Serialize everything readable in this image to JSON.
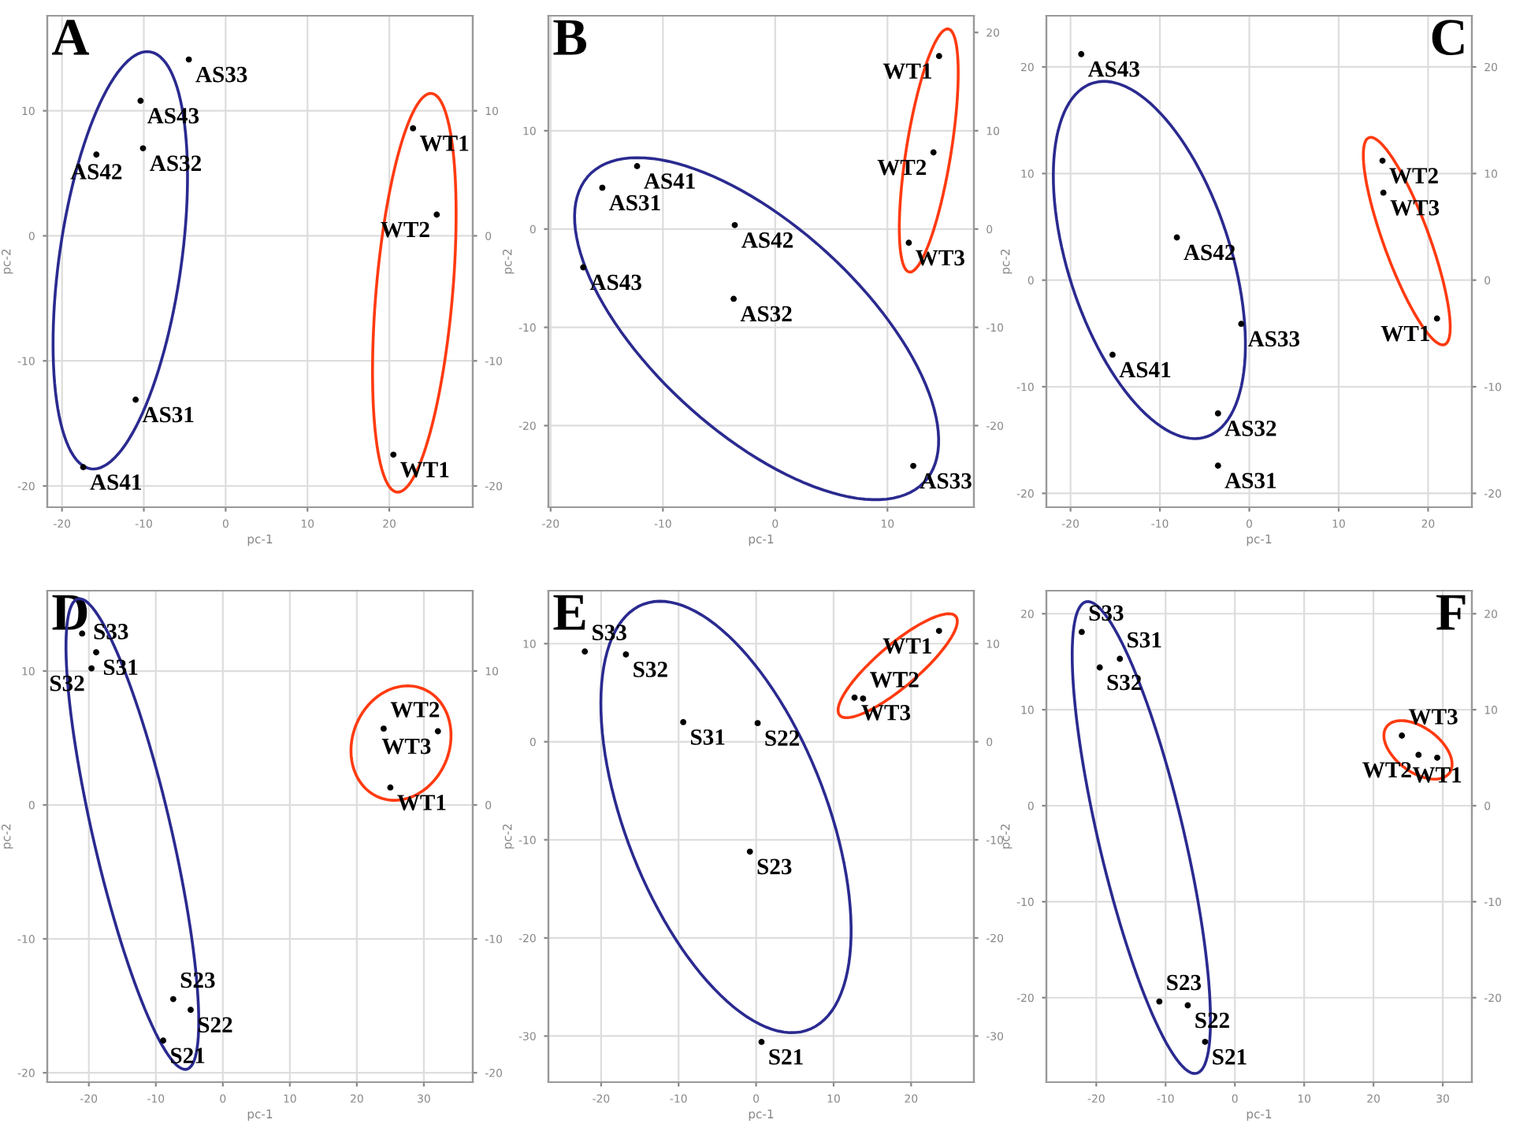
{
  "chart_data": [
    {
      "type": "scatter",
      "title": "A",
      "xlabel": "pc-1",
      "ylabel": "pc-2",
      "xlim": [
        -21.8,
        30.2
      ],
      "ylim": [
        -21.7,
        17.6
      ],
      "xticks": [
        -20,
        -10,
        0,
        10,
        20
      ],
      "yticks": [
        -20,
        -10,
        0,
        10
      ],
      "y2lim": [
        -21.7,
        17.6
      ],
      "y2ticks": [
        -20,
        -10,
        0,
        10
      ],
      "grid": true,
      "marker": "circle",
      "series": [
        {
          "color": "#000000",
          "x": [
            22.9,
            25.8,
            20.5
          ],
          "values": [
            8.6,
            1.7,
            -17.5
          ]
        },
        {
          "color": "#000000",
          "x": [
            -4.5,
            -10.4,
            -10.1,
            -15.8,
            -11.0,
            -17.4
          ],
          "values": [
            14.1,
            10.8,
            7.0,
            6.5,
            -13.1,
            -18.5
          ]
        }
      ],
      "annotations": [
        {
          "text": "WT1",
          "x": 22.9,
          "y": 8.6
        },
        {
          "text": "WT2",
          "x": 25.8,
          "y": 1.7
        },
        {
          "text": "WT1",
          "x": 20.5,
          "y": -17.5
        },
        {
          "text": "AS33",
          "x": -4.5,
          "y": 14.1
        },
        {
          "text": "AS43",
          "x": -10.4,
          "y": 10.8
        },
        {
          "text": "AS32",
          "x": -10.1,
          "y": 7.0
        },
        {
          "text": "AS42",
          "x": -15.8,
          "y": 6.5
        },
        {
          "text": "AS31",
          "x": -11.0,
          "y": -13.1
        },
        {
          "text": "AS41",
          "x": -17.4,
          "y": -18.5
        }
      ]
    },
    {
      "type": "scatter",
      "title": "B",
      "xlabel": "pc-1",
      "ylabel": "pc-2",
      "xlim": [
        -20.2,
        17.7
      ],
      "ylim": [
        -28.3,
        21.7
      ],
      "xticks": [
        -20,
        -10,
        0,
        10
      ],
      "yticks": [
        -20,
        -10,
        0,
        10
      ],
      "y2lim": [
        -28.3,
        21.7
      ],
      "y2ticks": [
        -20,
        -10,
        0,
        10,
        20
      ],
      "grid": true,
      "marker": "circle",
      "series": [
        {
          "color": "#000000",
          "x": [
            14.6,
            14.1,
            11.9
          ],
          "values": [
            17.6,
            7.8,
            -1.4
          ]
        },
        {
          "color": "#000000",
          "x": [
            -12.3,
            -15.4,
            -3.6,
            -17.1,
            -3.7,
            12.3
          ],
          "values": [
            6.4,
            4.2,
            0.4,
            -3.9,
            -7.1,
            -24.1
          ]
        }
      ],
      "annotations": [
        {
          "text": "WT1",
          "x": 14.6,
          "y": 17.6
        },
        {
          "text": "WT2",
          "x": 14.1,
          "y": 7.8
        },
        {
          "text": "WT3",
          "x": 11.9,
          "y": -1.4
        },
        {
          "text": "AS41",
          "x": -12.3,
          "y": 6.4
        },
        {
          "text": "AS31",
          "x": -15.4,
          "y": 4.2
        },
        {
          "text": "AS42",
          "x": -3.6,
          "y": 0.4
        },
        {
          "text": "AS43",
          "x": -17.1,
          "y": -3.9
        },
        {
          "text": "AS32",
          "x": -3.7,
          "y": -7.1
        },
        {
          "text": "AS33",
          "x": 12.3,
          "y": -24.1
        }
      ]
    },
    {
      "type": "scatter",
      "title": "C",
      "xlabel": "pc-1",
      "ylabel": "pc-2",
      "xlim": [
        -22.7,
        24.9
      ],
      "ylim": [
        -21.3,
        24.8
      ],
      "xticks": [
        -20,
        -10,
        0,
        10,
        20
      ],
      "yticks": [
        -20,
        -10,
        0,
        10,
        20
      ],
      "y2lim": [
        -21.3,
        24.8
      ],
      "y2ticks": [
        -20,
        -10,
        0,
        10,
        20
      ],
      "grid": true,
      "marker": "circle",
      "series": [
        {
          "color": "#000000",
          "x": [
            14.9,
            15.0,
            21.0
          ],
          "values": [
            11.2,
            8.2,
            -3.6
          ]
        },
        {
          "color": "#000000",
          "x": [
            -18.8,
            -8.1,
            -15.3,
            -0.9,
            -3.5,
            -3.5
          ],
          "values": [
            21.2,
            4.0,
            -7.0,
            -4.1,
            -12.5,
            -17.4
          ]
        }
      ],
      "annotations": [
        {
          "text": "WT2",
          "x": 14.9,
          "y": 11.2
        },
        {
          "text": "WT3",
          "x": 15.0,
          "y": 8.2
        },
        {
          "text": "WT1",
          "x": 21.0,
          "y": -3.6
        },
        {
          "text": "AS43",
          "x": -18.8,
          "y": 21.2
        },
        {
          "text": "AS42",
          "x": -8.1,
          "y": 4.0
        },
        {
          "text": "AS41",
          "x": -15.3,
          "y": -7.0
        },
        {
          "text": "AS33",
          "x": -0.9,
          "y": -4.1
        },
        {
          "text": "AS32",
          "x": -3.5,
          "y": -12.5
        },
        {
          "text": "AS31",
          "x": -3.5,
          "y": -17.4
        }
      ]
    },
    {
      "type": "scatter",
      "title": "D",
      "xlabel": "pc-1",
      "ylabel": "pc-2",
      "xlim": [
        -26.2,
        37.3
      ],
      "ylim": [
        -20.7,
        16.0
      ],
      "xticks": [
        -20,
        -10,
        0,
        10,
        20,
        30
      ],
      "yticks": [
        -20,
        -10,
        0,
        10
      ],
      "y2lim": [
        -20.7,
        16.0
      ],
      "y2ticks": [
        -20,
        -10,
        0,
        10
      ],
      "grid": true,
      "marker": "circle",
      "series": [
        {
          "color": "#000000",
          "x": [
            24.0,
            32.1,
            25.0
          ],
          "values": [
            5.7,
            5.5,
            1.3
          ]
        },
        {
          "color": "#000000",
          "x": [
            -21.0,
            -18.9,
            -19.6,
            -7.4,
            -4.8,
            -8.9
          ],
          "values": [
            12.8,
            11.4,
            10.2,
            -14.5,
            -15.3,
            -17.6
          ]
        }
      ],
      "annotations": [
        {
          "text": "WT2",
          "x": 24.0,
          "y": 5.7
        },
        {
          "text": "WT3",
          "x": 32.1,
          "y": 5.5
        },
        {
          "text": "WT1",
          "x": 25.0,
          "y": 1.3
        },
        {
          "text": "S33",
          "x": -21.0,
          "y": 12.8
        },
        {
          "text": "S31",
          "x": -18.9,
          "y": 11.4
        },
        {
          "text": "S32",
          "x": -19.6,
          "y": 10.2
        },
        {
          "text": "S23",
          "x": -7.4,
          "y": -14.5
        },
        {
          "text": "S22",
          "x": -4.8,
          "y": -15.3
        },
        {
          "text": "S21",
          "x": -8.9,
          "y": -17.6
        }
      ]
    },
    {
      "type": "scatter",
      "title": "E",
      "xlabel": "pc-1",
      "ylabel": "pc-2",
      "xlim": [
        -26.8,
        28.1
      ],
      "ylim": [
        -34.7,
        15.4
      ],
      "xticks": [
        -20,
        -10,
        0,
        10,
        20
      ],
      "yticks": [
        -30,
        -20,
        -10,
        0,
        10
      ],
      "y2lim": [
        -34.7,
        15.4
      ],
      "y2ticks": [
        -30,
        -20,
        -10,
        0,
        10
      ],
      "grid": true,
      "marker": "circle",
      "series": [
        {
          "color": "#000000",
          "x": [
            23.6,
            12.7,
            13.8
          ],
          "values": [
            11.3,
            4.5,
            4.4
          ]
        },
        {
          "color": "#000000",
          "x": [
            -22.1,
            -16.8,
            -9.4,
            0.2,
            -0.8,
            0.7
          ],
          "values": [
            9.2,
            8.9,
            2.0,
            1.9,
            -11.2,
            -30.6
          ]
        }
      ],
      "annotations": [
        {
          "text": "WT1",
          "x": 23.6,
          "y": 11.3
        },
        {
          "text": "WT3",
          "x": 12.7,
          "y": 4.5
        },
        {
          "text": "WT2",
          "x": 13.8,
          "y": 4.4
        },
        {
          "text": "S33",
          "x": -22.1,
          "y": 9.2
        },
        {
          "text": "S32",
          "x": -16.8,
          "y": 8.9
        },
        {
          "text": "S31",
          "x": -9.4,
          "y": 2.0
        },
        {
          "text": "S22",
          "x": 0.2,
          "y": 1.9
        },
        {
          "text": "S23",
          "x": -0.8,
          "y": -11.2
        },
        {
          "text": "S21",
          "x": 0.7,
          "y": -30.6
        }
      ]
    },
    {
      "type": "scatter",
      "title": "F",
      "xlabel": "pc-1",
      "ylabel": "pc-2",
      "xlim": [
        -27.2,
        34.2
      ],
      "ylim": [
        -28.8,
        22.4
      ],
      "xticks": [
        -20,
        -10,
        0,
        10,
        20,
        30
      ],
      "yticks": [
        -20,
        -10,
        0,
        10,
        20
      ],
      "y2lim": [
        -28.8,
        22.4
      ],
      "y2ticks": [
        -20,
        -10,
        0,
        10,
        20
      ],
      "grid": true,
      "marker": "circle",
      "series": [
        {
          "color": "#000000",
          "x": [
            24.1,
            26.5,
            29.2
          ],
          "values": [
            7.3,
            5.3,
            5.0
          ]
        },
        {
          "color": "#000000",
          "x": [
            -22.1,
            -19.5,
            -16.6,
            -10.9,
            -6.8,
            -4.3
          ],
          "values": [
            18.1,
            14.4,
            15.3,
            -20.4,
            -20.8,
            -24.6
          ]
        }
      ],
      "annotations": [
        {
          "text": "WT3",
          "x": 24.1,
          "y": 7.3
        },
        {
          "text": "WT2",
          "x": 26.5,
          "y": 5.3
        },
        {
          "text": "WT1",
          "x": 29.2,
          "y": 5.0
        },
        {
          "text": "S33",
          "x": -22.1,
          "y": 18.1
        },
        {
          "text": "S32",
          "x": -19.5,
          "y": 14.4
        },
        {
          "text": "S31",
          "x": -16.6,
          "y": 15.3
        },
        {
          "text": "S23",
          "x": -10.9,
          "y": -20.4
        },
        {
          "text": "S22",
          "x": -6.8,
          "y": -20.8
        },
        {
          "text": "S21",
          "x": -4.3,
          "y": -24.6
        }
      ]
    }
  ]
}
